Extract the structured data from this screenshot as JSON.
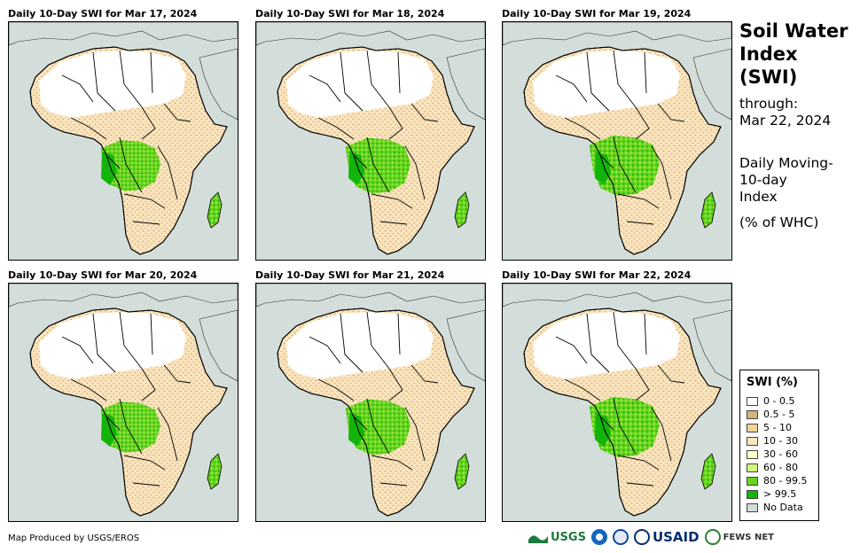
{
  "panels": [
    {
      "title": "Daily 10-Day SWI for Mar 17, 2024"
    },
    {
      "title": "Daily 10-Day SWI for Mar 18, 2024"
    },
    {
      "title": "Daily 10-Day SWI for Mar 19, 2024"
    },
    {
      "title": "Daily 10-Day SWI for Mar 20, 2024"
    },
    {
      "title": "Daily 10-Day SWI for Mar 21, 2024"
    },
    {
      "title": "Daily 10-Day SWI for Mar 22, 2024"
    }
  ],
  "sidebar": {
    "title_line1": "Soil Water",
    "title_line2": "Index",
    "title_line3": "(SWI)",
    "through_label": "through:",
    "through_date": "Mar 22, 2024",
    "desc_line1": "Daily Moving-",
    "desc_line2": "10-day",
    "desc_line3": "Index",
    "unit": "(% of WHC)"
  },
  "legend": {
    "title": "SWI (%)",
    "items": [
      {
        "label": "0 - 0.5",
        "color": "#ffffff"
      },
      {
        "label": "0.5 - 5",
        "color": "#d2b47c"
      },
      {
        "label": "5 - 10",
        "color": "#f2d39b"
      },
      {
        "label": "10 - 30",
        "color": "#fbe5c0"
      },
      {
        "label": "30 - 60",
        "color": "#ffffc8"
      },
      {
        "label": "60 - 80",
        "color": "#d2f57d"
      },
      {
        "label": "80 - 99.5",
        "color": "#6ad41e"
      },
      {
        "label": "> 99.5",
        "color": "#12b40a"
      },
      {
        "label": "No Data",
        "color": "#d3ddd9"
      }
    ]
  },
  "footer": {
    "credit": "Map Produced by USGS/EROS",
    "logo_usgs": "USGS",
    "logo_usaid": "USAID",
    "logo_fews": "FEWS NET"
  },
  "colors": {
    "ocean": "#d3ddd9",
    "desert": "#ffffff",
    "dry": "#d2b47c",
    "moderate": "#fbe5c0",
    "wet": "#6ad41e",
    "saturated": "#12b40a"
  }
}
